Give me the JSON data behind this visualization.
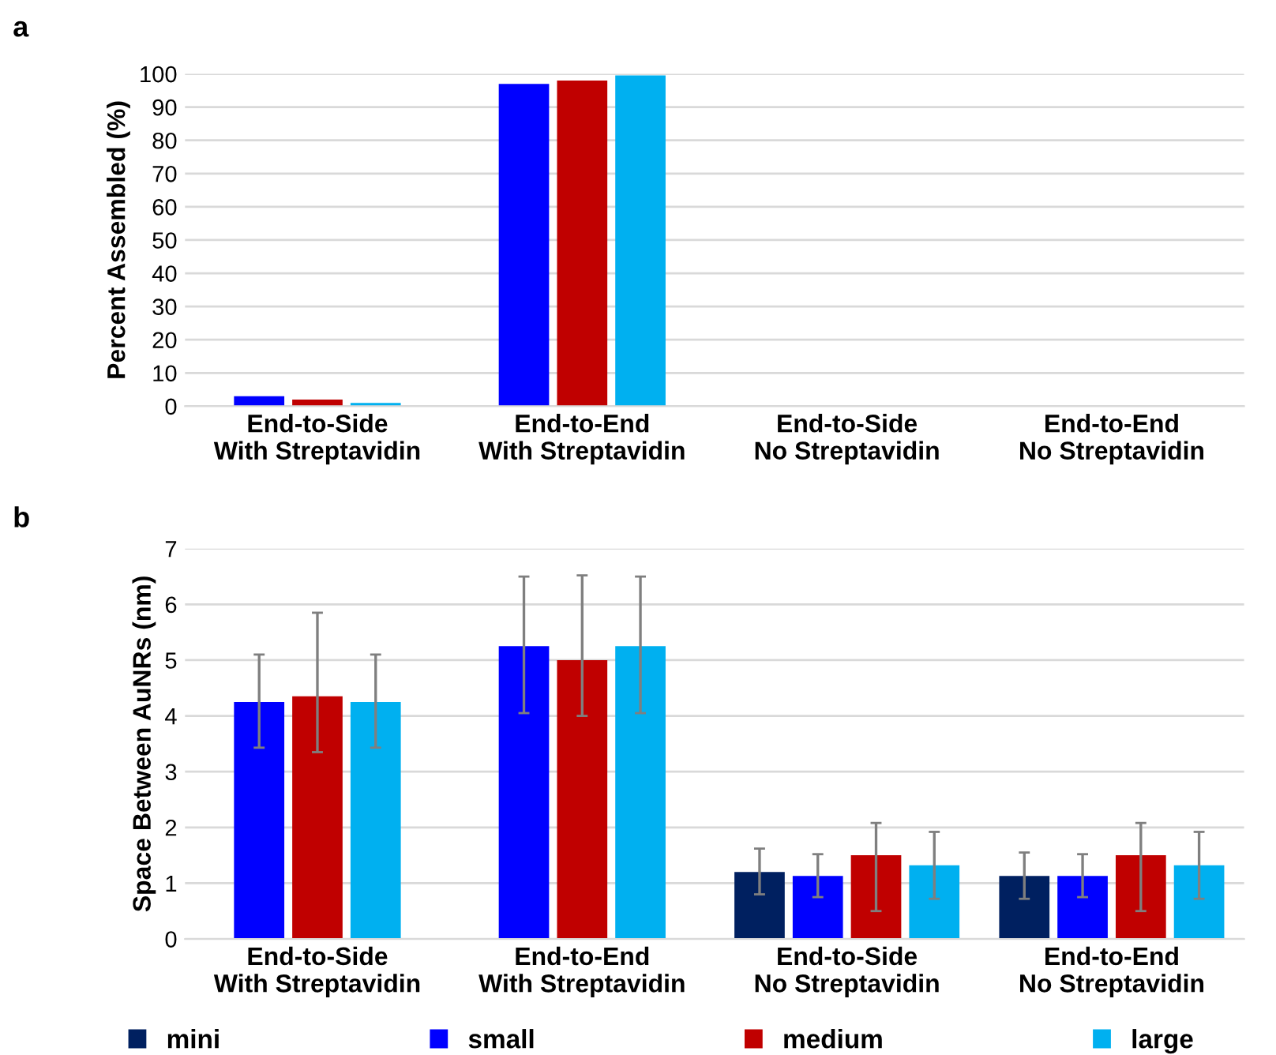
{
  "chart_data": [
    {
      "type": "bar",
      "ylabel": "Percent Assembled (%)",
      "annotations": [
        "a"
      ],
      "categories": [
        "End-to-Side\nWith Streptavidin",
        "End-to-End\nWith Streptavidin",
        "End-to-Side\nNo Streptavidin",
        "End-to-End\nNo Streptavidin"
      ],
      "ylim": [
        0,
        100
      ],
      "yticks": [
        0,
        10,
        20,
        30,
        40,
        50,
        60,
        70,
        80,
        90,
        100
      ],
      "grid": "y",
      "legend": false,
      "series": [
        {
          "color": "#002060",
          "values": [
            null,
            null,
            0,
            0
          ]
        },
        {
          "color": "#0000ff",
          "values": [
            3,
            97,
            0,
            0
          ]
        },
        {
          "color": "#c00000",
          "values": [
            2,
            98,
            0,
            0
          ]
        },
        {
          "color": "#00b0f0",
          "values": [
            1,
            99.5,
            0,
            0
          ]
        }
      ]
    },
    {
      "type": "bar",
      "ylabel": "Space Between AuNRs (nm)",
      "annotations": [
        "b"
      ],
      "categories": [
        "End-to-Side\nWith Streptavidin",
        "End-to-End\nWith Streptavidin",
        "End-to-Side\nNo Streptavidin",
        "End-to-End\nNo Streptavidin"
      ],
      "ylim": [
        0,
        7
      ],
      "yticks": [
        0,
        1,
        2,
        3,
        4,
        5,
        6,
        7
      ],
      "grid": "y",
      "legend": "bottom",
      "series": [
        {
          "name": "mini",
          "color": "#002060",
          "values": [
            null,
            null,
            1.2,
            1.13
          ],
          "errors": [
            null,
            null,
            [
              0.8,
              1.62
            ],
            [
              0.72,
              1.55
            ]
          ]
        },
        {
          "name": "small",
          "color": "#0000ff",
          "values": [
            4.25,
            5.25,
            1.13,
            1.13
          ],
          "errors": [
            [
              3.43,
              5.1
            ],
            [
              4.05,
              6.5
            ],
            [
              0.75,
              1.52
            ],
            [
              0.75,
              1.52
            ]
          ]
        },
        {
          "name": "medium",
          "color": "#c00000",
          "values": [
            4.35,
            5.0,
            1.5,
            1.5
          ],
          "errors": [
            [
              3.35,
              5.85
            ],
            [
              4.0,
              6.52
            ],
            [
              0.5,
              2.08
            ],
            [
              0.5,
              2.08
            ]
          ]
        },
        {
          "name": "large",
          "color": "#00b0f0",
          "values": [
            4.25,
            5.25,
            1.32,
            1.32
          ],
          "errors": [
            [
              3.43,
              5.1
            ],
            [
              4.05,
              6.5
            ],
            [
              0.72,
              1.92
            ],
            [
              0.72,
              1.92
            ]
          ]
        }
      ]
    }
  ]
}
